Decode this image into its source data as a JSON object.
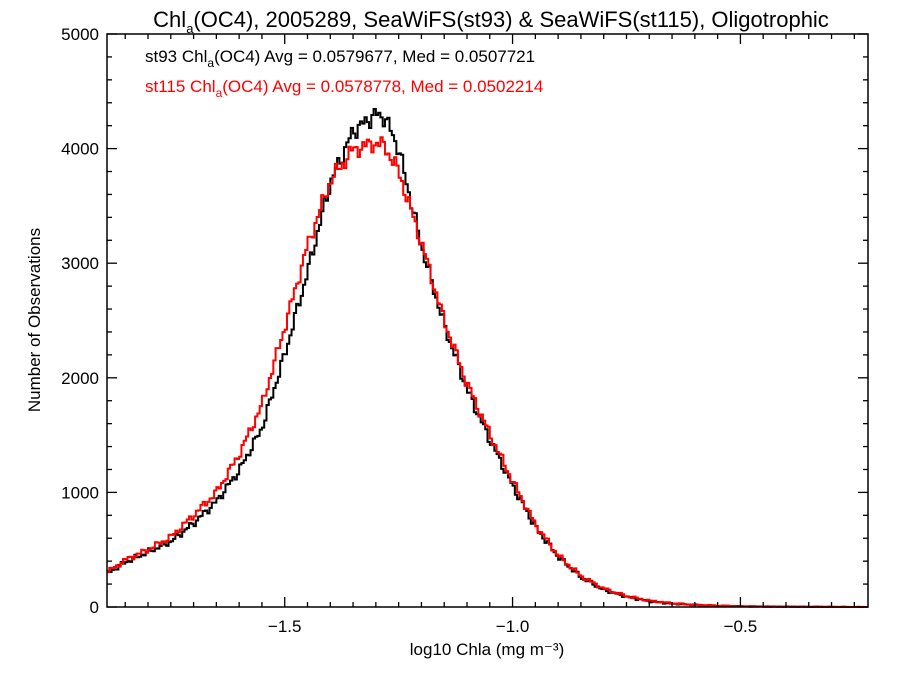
{
  "chart_data": {
    "type": "line",
    "step": true,
    "title": {
      "main": "Chl",
      "sub": "a",
      "rest": "(OC4), 2005289, SeaWiFS(st93) & SeaWiFS(st115), Oligotrophic"
    },
    "xlabel": "log10 Chla (mg m⁻³)",
    "ylabel": "Number of Observations",
    "xlim": [
      -1.89,
      -0.22
    ],
    "ylim": [
      0,
      5000
    ],
    "xticks": [
      {
        "value": -1.5,
        "label": "−1.5"
      },
      {
        "value": -1.0,
        "label": "−1.0"
      },
      {
        "value": -0.5,
        "label": "−0.5"
      }
    ],
    "yticks": [
      {
        "value": 0,
        "label": "0"
      },
      {
        "value": 1000,
        "label": "1000"
      },
      {
        "value": 2000,
        "label": "2000"
      },
      {
        "value": 3000,
        "label": "3000"
      },
      {
        "value": 4000,
        "label": "4000"
      },
      {
        "value": 5000,
        "label": "5000"
      }
    ],
    "annotations": [
      {
        "pre": "st93 Chl",
        "sub": "a",
        "post": "(OC4) Avg = 0.0579677, Med = 0.0507721",
        "color": "#000000"
      },
      {
        "pre": "st115 Chl",
        "sub": "a",
        "post": "(OC4) Avg = 0.0578778, Med = 0.0502214",
        "color": "#ff0000"
      }
    ],
    "series": [
      {
        "color": "#000000",
        "x": [
          -1.89,
          -1.85,
          -1.8,
          -1.75,
          -1.7,
          -1.65,
          -1.6,
          -1.55,
          -1.5,
          -1.45,
          -1.4,
          -1.35,
          -1.3,
          -1.28,
          -1.25,
          -1.2,
          -1.15,
          -1.1,
          -1.05,
          -1.0,
          -0.95,
          -0.9,
          -0.85,
          -0.8,
          -0.75,
          -0.7,
          -0.65,
          -0.6,
          -0.55,
          -0.5,
          -0.45,
          -0.4,
          -0.35,
          -0.3,
          -0.22
        ],
        "values": [
          290,
          390,
          480,
          570,
          730,
          920,
          1190,
          1560,
          2200,
          2920,
          3700,
          4150,
          4300,
          4270,
          4000,
          3150,
          2460,
          1900,
          1460,
          1060,
          700,
          440,
          260,
          150,
          90,
          50,
          30,
          18,
          10,
          6,
          4,
          3,
          2,
          1,
          0
        ]
      },
      {
        "color": "#ff0000",
        "x": [
          -1.89,
          -1.85,
          -1.8,
          -1.75,
          -1.7,
          -1.65,
          -1.6,
          -1.55,
          -1.5,
          -1.45,
          -1.4,
          -1.35,
          -1.3,
          -1.28,
          -1.25,
          -1.2,
          -1.15,
          -1.1,
          -1.05,
          -1.0,
          -0.95,
          -0.9,
          -0.85,
          -0.8,
          -0.75,
          -0.7,
          -0.65,
          -0.6,
          -0.55,
          -0.5,
          -0.45,
          -0.4,
          -0.35,
          -0.3,
          -0.22
        ],
        "values": [
          300,
          410,
          500,
          610,
          800,
          1000,
          1330,
          1760,
          2440,
          3150,
          3720,
          3990,
          4050,
          4020,
          3800,
          3180,
          2500,
          1950,
          1510,
          1100,
          720,
          450,
          270,
          160,
          95,
          55,
          32,
          19,
          11,
          6,
          4,
          3,
          2,
          1,
          0
        ]
      }
    ]
  }
}
